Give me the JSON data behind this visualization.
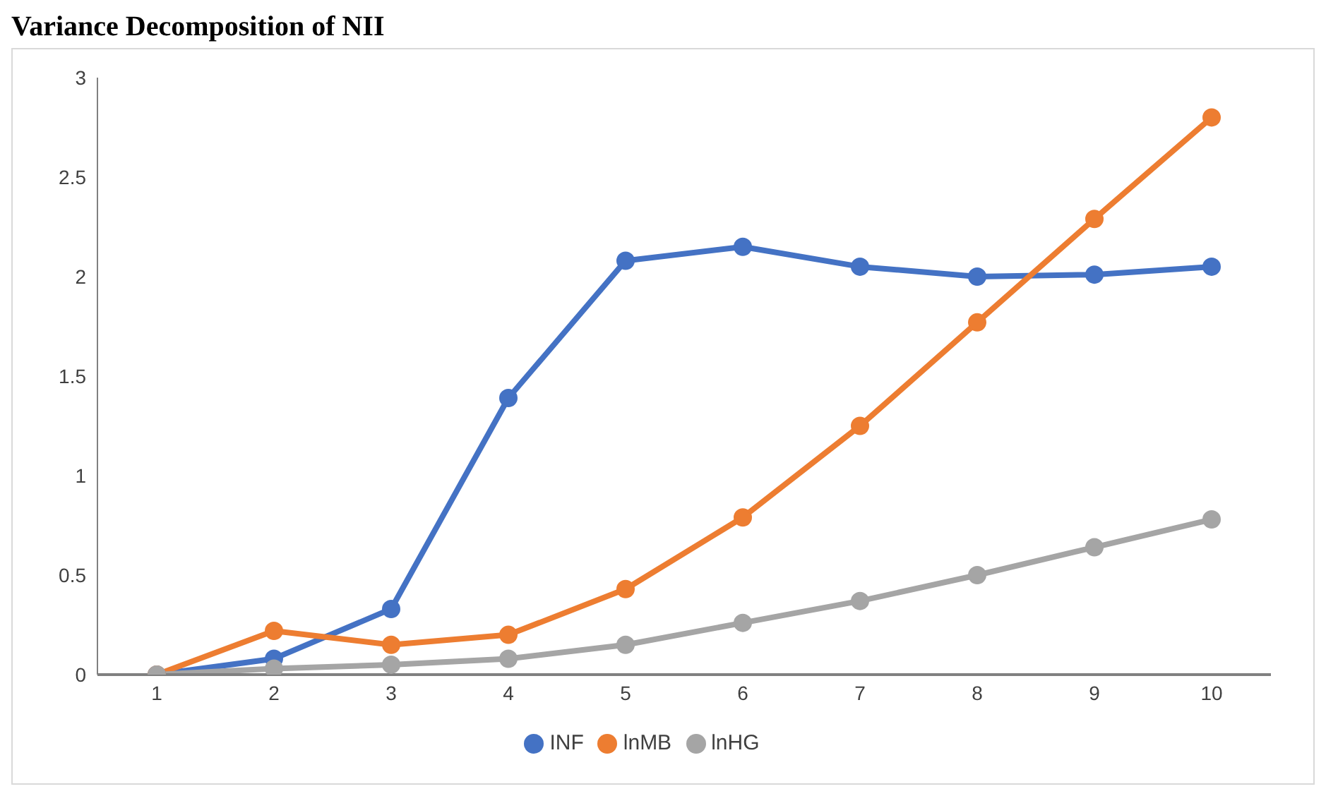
{
  "chart_data": {
    "type": "line",
    "title": "Variance Decomposition of NII",
    "categories": [
      "1",
      "2",
      "3",
      "4",
      "5",
      "6",
      "7",
      "8",
      "9",
      "10"
    ],
    "series": [
      {
        "name": "INF",
        "color": "#4472c4",
        "values": [
          0,
          0.08,
          0.33,
          1.39,
          2.08,
          2.15,
          2.05,
          2.0,
          2.01,
          2.05
        ]
      },
      {
        "name": "lnMB",
        "color": "#ed7d31",
        "values": [
          0,
          0.22,
          0.15,
          0.2,
          0.43,
          0.79,
          1.25,
          1.77,
          2.29,
          2.8
        ]
      },
      {
        "name": "lnHG",
        "color": "#a5a5a5",
        "values": [
          0,
          0.03,
          0.05,
          0.08,
          0.15,
          0.26,
          0.37,
          0.5,
          0.64,
          0.78
        ]
      }
    ],
    "ylim": [
      0,
      3
    ],
    "yticks": [
      0,
      0.5,
      1,
      1.5,
      2,
      2.5,
      3
    ],
    "grid": false,
    "legend": "bottom",
    "marker": "circle",
    "line_style": "solid"
  }
}
